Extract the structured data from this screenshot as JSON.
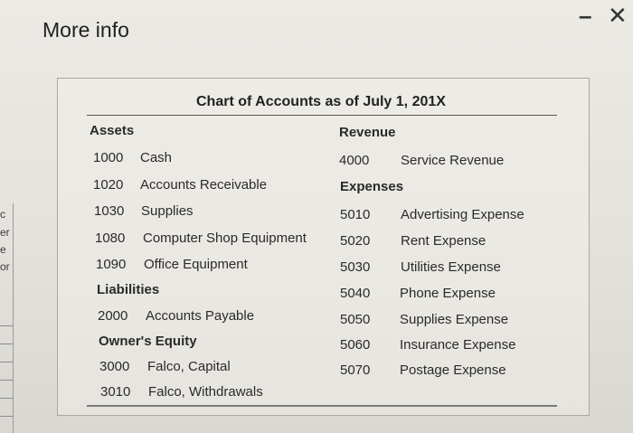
{
  "window": {
    "title": "More info",
    "minimize_glyph": "–",
    "close_glyph": "✕"
  },
  "edge_fragments": [
    "c",
    "er",
    "e",
    "or"
  ],
  "chart": {
    "title": "Chart of Accounts as of July 1, 201X",
    "assets_heading": "Assets",
    "assets": [
      {
        "number": "1000",
        "name": "Cash"
      },
      {
        "number": "1020",
        "name": "Accounts Receivable"
      },
      {
        "number": "1030",
        "name": "Supplies"
      },
      {
        "number": "1080",
        "name": "Computer Shop Equipment"
      },
      {
        "number": "1090",
        "name": "Office Equipment"
      }
    ],
    "liabilities_heading": "Liabilities",
    "liabilities": [
      {
        "number": "2000",
        "name": "Accounts Payable"
      }
    ],
    "equity_heading": "Owner's Equity",
    "equity": [
      {
        "number": "3000",
        "name": "Falco, Capital"
      },
      {
        "number": "3010",
        "name": "Falco, Withdrawals"
      }
    ],
    "revenue_heading": "Revenue",
    "revenue": [
      {
        "number": "4000",
        "name": "Service Revenue"
      }
    ],
    "expenses_heading": "Expenses",
    "expenses": [
      {
        "number": "5010",
        "name": "Advertising Expense"
      },
      {
        "number": "5020",
        "name": "Rent Expense"
      },
      {
        "number": "5030",
        "name": "Utilities Expense"
      },
      {
        "number": "5040",
        "name": "Phone Expense"
      },
      {
        "number": "5050",
        "name": "Supplies Expense"
      },
      {
        "number": "5060",
        "name": "Insurance Expense"
      },
      {
        "number": "5070",
        "name": "Postage Expense"
      }
    ]
  }
}
